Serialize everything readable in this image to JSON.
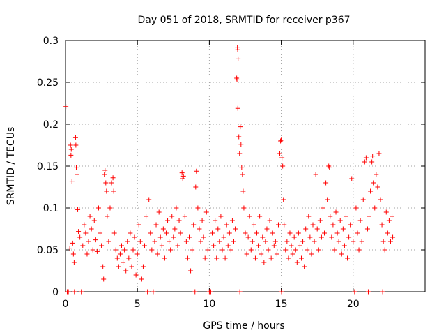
{
  "chart_data": {
    "type": "scatter",
    "title": "Day 051 of 2018, SRMTID for receiver p367",
    "xlabel": "GPS time / hours",
    "ylabel": "SRMTID / TECUs",
    "xlim": [
      0,
      25
    ],
    "ylim": [
      0,
      0.3
    ],
    "x_ticks": [
      0,
      5,
      10,
      15,
      20
    ],
    "x_tick_labels": [
      "0",
      "5",
      "10",
      "15",
      "20"
    ],
    "y_ticks": [
      0,
      0.05,
      0.1,
      0.15,
      0.2,
      0.25,
      0.3
    ],
    "y_tick_labels": [
      "0",
      "0.05",
      "0.1",
      "0.15",
      "0.2",
      "0.25",
      "0.3"
    ],
    "grid": true,
    "marker": "+",
    "color": "#ff0000",
    "series": [
      {
        "name": "SRMTID",
        "points": [
          [
            0.03,
            0.221
          ],
          [
            0.12,
            0.0
          ],
          [
            0.2,
            0.0
          ],
          [
            0.3,
            0.052
          ],
          [
            0.35,
            0.175
          ],
          [
            0.38,
            0.163
          ],
          [
            0.4,
            0.17
          ],
          [
            0.45,
            0.132
          ],
          [
            0.5,
            0.058
          ],
          [
            0.55,
            0.045
          ],
          [
            0.6,
            0.035
          ],
          [
            0.62,
            0.0
          ],
          [
            0.7,
            0.184
          ],
          [
            0.72,
            0.175
          ],
          [
            0.75,
            0.148
          ],
          [
            0.8,
            0.14
          ],
          [
            0.85,
            0.098
          ],
          [
            0.9,
            0.072
          ],
          [
            1.0,
            0.065
          ],
          [
            1.1,
            0.0
          ],
          [
            1.2,
            0.055
          ],
          [
            1.3,
            0.08
          ],
          [
            1.4,
            0.07
          ],
          [
            1.5,
            0.045
          ],
          [
            1.6,
            0.06
          ],
          [
            1.7,
            0.09
          ],
          [
            1.8,
            0.075
          ],
          [
            1.9,
            0.05
          ],
          [
            2.0,
            0.085
          ],
          [
            2.1,
            0.062
          ],
          [
            2.2,
            0.048
          ],
          [
            2.3,
            0.1
          ],
          [
            2.4,
            0.07
          ],
          [
            2.5,
            0.055
          ],
          [
            2.6,
            0.03
          ],
          [
            2.65,
            0.015
          ],
          [
            2.7,
            0.14
          ],
          [
            2.75,
            0.145
          ],
          [
            2.8,
            0.13
          ],
          [
            2.85,
            0.12
          ],
          [
            2.9,
            0.09
          ],
          [
            3.0,
            0.06
          ],
          [
            3.1,
            0.1
          ],
          [
            3.2,
            0.13
          ],
          [
            3.3,
            0.136
          ],
          [
            3.35,
            0.12
          ],
          [
            3.4,
            0.07
          ],
          [
            3.5,
            0.05
          ],
          [
            3.6,
            0.04
          ],
          [
            3.7,
            0.03
          ],
          [
            3.8,
            0.045
          ],
          [
            3.9,
            0.055
          ],
          [
            4.0,
            0.035
          ],
          [
            4.1,
            0.05
          ],
          [
            4.2,
            0.025
          ],
          [
            4.3,
            0.06
          ],
          [
            4.4,
            0.04
          ],
          [
            4.5,
            0.07
          ],
          [
            4.6,
            0.03
          ],
          [
            4.7,
            0.05
          ],
          [
            4.8,
            0.065
          ],
          [
            4.9,
            0.02
          ],
          [
            5.0,
            0.045
          ],
          [
            5.1,
            0.08
          ],
          [
            5.2,
            0.06
          ],
          [
            5.3,
            0.015
          ],
          [
            5.4,
            0.03
          ],
          [
            5.5,
            0.055
          ],
          [
            5.6,
            0.09
          ],
          [
            5.7,
            0.0
          ],
          [
            5.8,
            0.11
          ],
          [
            5.9,
            0.07
          ],
          [
            6.0,
            0.05
          ],
          [
            6.1,
            0.0
          ],
          [
            6.2,
            0.06
          ],
          [
            6.3,
            0.08
          ],
          [
            6.4,
            0.045
          ],
          [
            6.5,
            0.095
          ],
          [
            6.6,
            0.065
          ],
          [
            6.7,
            0.055
          ],
          [
            6.8,
            0.075
          ],
          [
            6.9,
            0.04
          ],
          [
            7.0,
            0.07
          ],
          [
            7.1,
            0.085
          ],
          [
            7.2,
            0.06
          ],
          [
            7.3,
            0.05
          ],
          [
            7.4,
            0.09
          ],
          [
            7.5,
            0.065
          ],
          [
            7.6,
            0.075
          ],
          [
            7.7,
            0.1
          ],
          [
            7.8,
            0.055
          ],
          [
            7.9,
            0.085
          ],
          [
            8.0,
            0.07
          ],
          [
            8.1,
            0.142
          ],
          [
            8.15,
            0.135
          ],
          [
            8.2,
            0.138
          ],
          [
            8.3,
            0.09
          ],
          [
            8.4,
            0.06
          ],
          [
            8.5,
            0.04
          ],
          [
            8.6,
            0.065
          ],
          [
            8.7,
            0.025
          ],
          [
            8.8,
            0.05
          ],
          [
            8.9,
            0.08
          ],
          [
            9.0,
            0.0
          ],
          [
            9.05,
            0.125
          ],
          [
            9.1,
            0.144
          ],
          [
            9.2,
            0.1
          ],
          [
            9.3,
            0.075
          ],
          [
            9.4,
            0.06
          ],
          [
            9.5,
            0.085
          ],
          [
            9.6,
            0.065
          ],
          [
            9.7,
            0.04
          ],
          [
            9.8,
            0.095
          ],
          [
            9.9,
            0.05
          ],
          [
            10.0,
            0.0
          ],
          [
            10.1,
            0.0
          ],
          [
            10.2,
            0.07
          ],
          [
            10.3,
            0.055
          ],
          [
            10.4,
            0.085
          ],
          [
            10.5,
            0.04
          ],
          [
            10.6,
            0.075
          ],
          [
            10.7,
            0.06
          ],
          [
            10.8,
            0.09
          ],
          [
            10.9,
            0.05
          ],
          [
            11.0,
            0.065
          ],
          [
            11.1,
            0.04
          ],
          [
            11.2,
            0.08
          ],
          [
            11.3,
            0.055
          ],
          [
            11.4,
            0.07
          ],
          [
            11.5,
            0.05
          ],
          [
            11.6,
            0.085
          ],
          [
            11.7,
            0.06
          ],
          [
            11.8,
            0.075
          ],
          [
            11.9,
            0.255
          ],
          [
            11.92,
            0.253
          ],
          [
            11.95,
            0.292
          ],
          [
            11.97,
            0.289
          ],
          [
            12.0,
            0.278
          ],
          [
            11.98,
            0.219
          ],
          [
            12.05,
            0.185
          ],
          [
            12.1,
            0.165
          ],
          [
            12.12,
            0.0
          ],
          [
            12.15,
            0.197
          ],
          [
            12.2,
            0.176
          ],
          [
            12.25,
            0.148
          ],
          [
            12.3,
            0.14
          ],
          [
            12.35,
            0.12
          ],
          [
            12.4,
            0.1
          ],
          [
            12.5,
            0.07
          ],
          [
            12.6,
            0.045
          ],
          [
            12.7,
            0.065
          ],
          [
            12.8,
            0.09
          ],
          [
            12.9,
            0.05
          ],
          [
            13.0,
            0.06
          ],
          [
            13.1,
            0.08
          ],
          [
            13.2,
            0.04
          ],
          [
            13.3,
            0.07
          ],
          [
            13.4,
            0.055
          ],
          [
            13.5,
            0.09
          ],
          [
            13.6,
            0.045
          ],
          [
            13.7,
            0.065
          ],
          [
            13.8,
            0.035
          ],
          [
            13.9,
            0.06
          ],
          [
            14.0,
            0.075
          ],
          [
            14.1,
            0.05
          ],
          [
            14.2,
            0.085
          ],
          [
            14.3,
            0.04
          ],
          [
            14.4,
            0.07
          ],
          [
            14.5,
            0.055
          ],
          [
            14.6,
            0.06
          ],
          [
            14.7,
            0.045
          ],
          [
            14.8,
            0.08
          ],
          [
            14.9,
            0.165
          ],
          [
            14.95,
            0.18
          ],
          [
            15.0,
            0.181
          ],
          [
            15.02,
            0.0
          ],
          [
            15.05,
            0.16
          ],
          [
            15.1,
            0.15
          ],
          [
            15.15,
            0.11
          ],
          [
            15.2,
            0.08
          ],
          [
            15.3,
            0.05
          ],
          [
            15.4,
            0.06
          ],
          [
            15.5,
            0.04
          ],
          [
            15.6,
            0.07
          ],
          [
            15.7,
            0.055
          ],
          [
            15.8,
            0.045
          ],
          [
            15.9,
            0.065
          ],
          [
            16.0,
            0.05
          ],
          [
            16.1,
            0.035
          ],
          [
            16.2,
            0.07
          ],
          [
            16.3,
            0.055
          ],
          [
            16.4,
            0.04
          ],
          [
            16.5,
            0.06
          ],
          [
            16.6,
            0.03
          ],
          [
            16.7,
            0.075
          ],
          [
            16.8,
            0.05
          ],
          [
            16.9,
            0.09
          ],
          [
            17.0,
            0.065
          ],
          [
            17.1,
            0.045
          ],
          [
            17.2,
            0.08
          ],
          [
            17.3,
            0.06
          ],
          [
            17.4,
            0.14
          ],
          [
            17.5,
            0.075
          ],
          [
            17.6,
            0.05
          ],
          [
            17.7,
            0.085
          ],
          [
            17.8,
            0.065
          ],
          [
            17.9,
            0.1
          ],
          [
            18.0,
            0.07
          ],
          [
            18.1,
            0.13
          ],
          [
            18.2,
            0.11
          ],
          [
            18.3,
            0.15
          ],
          [
            18.35,
            0.148
          ],
          [
            18.4,
            0.09
          ],
          [
            18.5,
            0.065
          ],
          [
            18.6,
            0.08
          ],
          [
            18.7,
            0.05
          ],
          [
            18.8,
            0.095
          ],
          [
            18.9,
            0.07
          ],
          [
            19.0,
            0.06
          ],
          [
            19.1,
            0.085
          ],
          [
            19.2,
            0.045
          ],
          [
            19.3,
            0.075
          ],
          [
            19.4,
            0.055
          ],
          [
            19.5,
            0.09
          ],
          [
            19.6,
            0.04
          ],
          [
            19.7,
            0.065
          ],
          [
            19.8,
            0.08
          ],
          [
            19.9,
            0.135
          ],
          [
            20.0,
            0.06
          ],
          [
            20.1,
            0.0
          ],
          [
            20.2,
            0.1
          ],
          [
            20.3,
            0.07
          ],
          [
            20.4,
            0.05
          ],
          [
            20.5,
            0.085
          ],
          [
            20.6,
            0.06
          ],
          [
            20.7,
            0.11
          ],
          [
            20.8,
            0.155
          ],
          [
            20.9,
            0.16
          ],
          [
            21.0,
            0.075
          ],
          [
            21.05,
            0.0
          ],
          [
            21.1,
            0.09
          ],
          [
            21.2,
            0.12
          ],
          [
            21.3,
            0.155
          ],
          [
            21.35,
            0.162
          ],
          [
            21.4,
            0.13
          ],
          [
            21.5,
            0.1
          ],
          [
            21.6,
            0.14
          ],
          [
            21.7,
            0.125
          ],
          [
            21.8,
            0.165
          ],
          [
            21.9,
            0.11
          ],
          [
            22.0,
            0.08
          ],
          [
            22.05,
            0.0
          ],
          [
            22.1,
            0.06
          ],
          [
            22.2,
            0.05
          ],
          [
            22.3,
            0.095
          ],
          [
            22.4,
            0.07
          ],
          [
            22.5,
            0.085
          ],
          [
            22.6,
            0.06
          ],
          [
            22.7,
            0.09
          ],
          [
            22.75,
            0.065
          ]
        ]
      }
    ]
  }
}
